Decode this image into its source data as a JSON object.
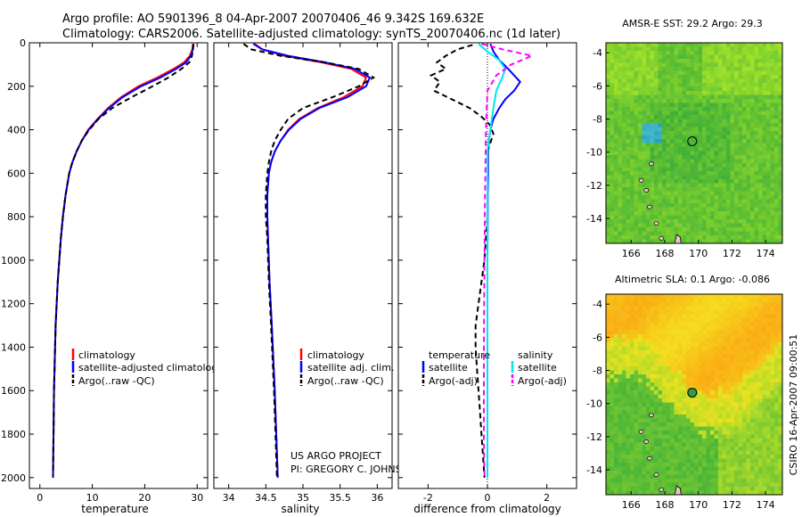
{
  "header": {
    "line1": "Argo profile: AO 5901396_8 04-Apr-2007 20070406_46 9.342S 169.632E",
    "line2": "Climatology: CARS2006. Satellite-adjusted climatology: synTS_20070406.nc (1d later)"
  },
  "colors": {
    "climatology": "#ff0000",
    "satellite": "#0000ff",
    "argo": "#000000",
    "sal_satellite": "#00e5ee",
    "sal_argo": "#ff00ff"
  },
  "chart_data": [
    {
      "type": "line",
      "name": "temperature",
      "xlabel": "temperature",
      "xlim": [
        -2,
        32
      ],
      "xticks": [
        0,
        10,
        20,
        30
      ],
      "ylim": [
        2050,
        0
      ],
      "yticks": [
        0,
        200,
        400,
        600,
        800,
        1000,
        1200,
        1400,
        1600,
        1800,
        2000
      ],
      "legend": [
        "climatology",
        "satellite-adjusted climatology",
        "Argo(..raw -QC)"
      ],
      "series": [
        {
          "name": "climatology",
          "color": "#ff0000",
          "style": "solid",
          "x": [
            29.2,
            29.1,
            28.6,
            27.5,
            25.5,
            22.4,
            18.8,
            15.5,
            13.0,
            11.0,
            9.2,
            8.0,
            7.0,
            6.2,
            5.6,
            4.9,
            4.4,
            4.0,
            3.4,
            3.0,
            2.7,
            2.5
          ],
          "y": [
            5,
            30,
            60,
            90,
            120,
            160,
            200,
            250,
            300,
            350,
            400,
            450,
            500,
            550,
            600,
            700,
            800,
            900,
            1100,
            1300,
            1600,
            2000
          ]
        },
        {
          "name": "satellite-adjusted climatology",
          "color": "#0000ff",
          "style": "solid",
          "x": [
            29.3,
            29.2,
            28.8,
            27.9,
            26.0,
            23.0,
            19.3,
            15.8,
            13.2,
            11.1,
            9.3,
            8.0,
            7.0,
            6.2,
            5.6,
            4.9,
            4.4,
            4.0,
            3.4,
            3.0,
            2.7,
            2.5
          ],
          "y": [
            5,
            30,
            60,
            90,
            120,
            160,
            200,
            250,
            300,
            350,
            400,
            450,
            500,
            550,
            600,
            700,
            800,
            900,
            1100,
            1300,
            1600,
            2000
          ]
        },
        {
          "name": "Argo(..raw -QC)",
          "color": "#000000",
          "style": "dash",
          "x": [
            29.3,
            29.2,
            29.0,
            28.5,
            27.0,
            24.5,
            21.5,
            17.5,
            13.8,
            11.2,
            9.4,
            8.0,
            7.0,
            6.2,
            5.6,
            4.9,
            4.4,
            4.0,
            3.4,
            3.0,
            2.7,
            2.5
          ],
          "y": [
            5,
            30,
            60,
            90,
            120,
            160,
            200,
            250,
            300,
            350,
            400,
            450,
            500,
            550,
            600,
            700,
            800,
            900,
            1100,
            1300,
            1600,
            2000
          ]
        }
      ]
    },
    {
      "type": "line",
      "name": "salinity",
      "xlabel": "salinity",
      "xlim": [
        33.8,
        36.2
      ],
      "xticks": [
        34,
        34.5,
        35,
        35.5,
        36
      ],
      "ylim": [
        2050,
        0
      ],
      "legend": [
        "climatology",
        "satellite adj. clim.",
        "Argo(..raw -QC)"
      ],
      "series": [
        {
          "name": "climatology",
          "color": "#ff0000",
          "style": "solid",
          "x": [
            34.35,
            34.45,
            34.75,
            35.25,
            35.65,
            35.85,
            35.8,
            35.55,
            35.2,
            34.95,
            34.8,
            34.7,
            34.62,
            34.57,
            34.54,
            34.52,
            34.52,
            34.53,
            34.55,
            34.58,
            34.62,
            34.66
          ],
          "y": [
            5,
            30,
            60,
            90,
            120,
            160,
            200,
            250,
            300,
            350,
            400,
            450,
            500,
            550,
            600,
            700,
            800,
            900,
            1100,
            1300,
            1600,
            2000
          ]
        },
        {
          "name": "satellite adj. clim.",
          "color": "#0000ff",
          "style": "solid",
          "x": [
            34.33,
            34.45,
            34.8,
            35.3,
            35.7,
            35.9,
            35.85,
            35.6,
            35.22,
            34.97,
            34.81,
            34.7,
            34.62,
            34.57,
            34.54,
            34.52,
            34.52,
            34.53,
            34.55,
            34.58,
            34.62,
            34.66
          ],
          "y": [
            5,
            30,
            60,
            90,
            120,
            160,
            200,
            250,
            300,
            350,
            400,
            450,
            500,
            550,
            600,
            700,
            800,
            900,
            1100,
            1300,
            1600,
            2000
          ]
        },
        {
          "name": "Argo(..raw -QC)",
          "color": "#000000",
          "style": "dash",
          "x": [
            34.2,
            34.3,
            34.7,
            35.3,
            35.75,
            35.95,
            35.75,
            35.4,
            35.0,
            34.8,
            34.7,
            34.62,
            34.57,
            34.54,
            34.52,
            34.5,
            34.5,
            34.52,
            34.54,
            34.57,
            34.61,
            34.65
          ],
          "y": [
            5,
            30,
            60,
            90,
            120,
            160,
            200,
            250,
            300,
            350,
            400,
            450,
            500,
            550,
            600,
            700,
            800,
            900,
            1100,
            1300,
            1600,
            2000
          ]
        }
      ]
    },
    {
      "type": "line",
      "name": "difference",
      "xlabel": "difference from climatology",
      "xlim": [
        -3,
        3
      ],
      "xticks": [
        -2,
        0,
        2
      ],
      "ylim": [
        2050,
        0
      ],
      "legend_temperature": {
        "title": "temperature",
        "items": [
          "satellite",
          "Argo(-adj)"
        ]
      },
      "legend_salinity": {
        "title": "salinity",
        "items": [
          "satellite",
          "Argo(-adj)"
        ]
      },
      "series": [
        {
          "name": "temperature satellite",
          "color": "#0000ff",
          "style": "solid",
          "x": [
            0.1,
            0.2,
            0.4,
            0.7,
            0.9,
            1.1,
            0.9,
            0.6,
            0.4,
            0.2,
            0.1,
            0.05,
            0.02,
            0.02,
            0.01,
            0.01,
            0.0,
            0.0,
            0.0
          ],
          "y": [
            5,
            40,
            80,
            120,
            150,
            180,
            220,
            260,
            300,
            350,
            400,
            450,
            500,
            600,
            700,
            800,
            1000,
            1500,
            2000
          ]
        },
        {
          "name": "temperature Argo(-adj)",
          "color": "#000000",
          "style": "dash",
          "x": [
            -0.5,
            -1.0,
            -1.4,
            -1.7,
            -1.4,
            -1.9,
            -1.6,
            -1.8,
            -1.2,
            -0.6,
            -0.2,
            0.1,
            0.2,
            0.1,
            0.0,
            0.0,
            0.0,
            -0.05,
            -0.1,
            -0.2,
            -0.3,
            -0.4,
            -0.4,
            -0.35,
            -0.3,
            -0.25,
            -0.2,
            -0.1
          ],
          "y": [
            10,
            30,
            60,
            90,
            120,
            150,
            180,
            220,
            260,
            300,
            340,
            380,
            420,
            460,
            500,
            600,
            800,
            900,
            1000,
            1100,
            1200,
            1300,
            1400,
            1500,
            1600,
            1700,
            1800,
            2000
          ]
        },
        {
          "name": "salinity satellite",
          "color": "#00e5ee",
          "style": "solid",
          "x": [
            -0.3,
            0.0,
            0.4,
            0.6,
            0.5,
            0.3,
            0.2,
            0.15,
            0.1,
            0.05,
            0.0,
            0.0,
            0.0,
            0.0,
            0.0
          ],
          "y": [
            5,
            40,
            80,
            120,
            160,
            220,
            300,
            350,
            400,
            450,
            500,
            700,
            1000,
            1500,
            2000
          ]
        },
        {
          "name": "salinity Argo(-adj)",
          "color": "#ff00ff",
          "style": "dash",
          "x": [
            -0.2,
            0.5,
            1.5,
            0.8,
            0.3,
            0.0,
            -0.05,
            -0.08,
            -0.1,
            -0.12,
            -0.12,
            -0.1
          ],
          "y": [
            5,
            30,
            60,
            100,
            150,
            220,
            400,
            700,
            1000,
            1400,
            1800,
            2000
          ]
        }
      ]
    }
  ],
  "maps": [
    {
      "title": "AMSR-E SST: 29.2 Argo: 29.3",
      "type": "heatmap",
      "xlim": [
        164.5,
        175
      ],
      "ylim": [
        -15.5,
        -3.4
      ],
      "xticks": [
        166,
        168,
        170,
        172,
        174
      ],
      "yticks": [
        -4,
        -6,
        -8,
        -10,
        -12,
        -14
      ],
      "marker": {
        "lon": 169.632,
        "lat": -9.342
      }
    },
    {
      "title": "Altimetric SLA: 0.1 Argo: -0.086",
      "type": "heatmap",
      "xlim": [
        164.5,
        175
      ],
      "ylim": [
        -15.5,
        -3.4
      ],
      "xticks": [
        166,
        168,
        170,
        172,
        174
      ],
      "yticks": [
        -4,
        -6,
        -8,
        -10,
        -12,
        -14
      ],
      "marker": {
        "lon": 169.632,
        "lat": -9.342
      }
    }
  ],
  "credits": {
    "line1": "US ARGO PROJECT",
    "line2": "PI: GREGORY C. JOHNSON"
  },
  "side_stamp": "CSIRO 16-Apr-2007 09:00:51"
}
